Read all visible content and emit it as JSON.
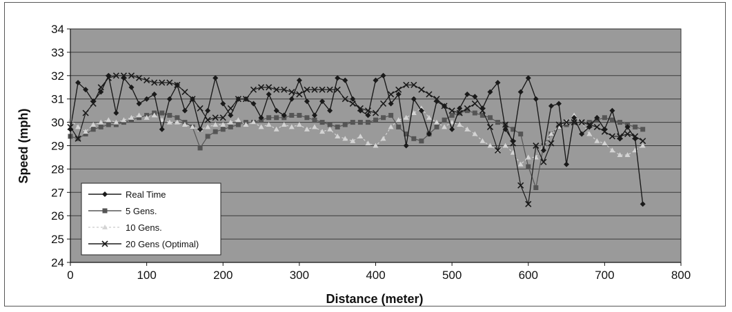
{
  "chart_data": {
    "type": "line",
    "title": "",
    "xlabel": "Distance (meter)",
    "ylabel": "Speed (mph)",
    "xlim": [
      0,
      800
    ],
    "ylim": [
      24,
      34
    ],
    "xticks": [
      0,
      100,
      200,
      300,
      400,
      500,
      600,
      700,
      800
    ],
    "yticks": [
      24,
      25,
      26,
      27,
      28,
      29,
      30,
      31,
      32,
      33,
      34
    ],
    "grid": true,
    "legend_position": "bottom-left",
    "colors": {
      "plot_background": "#9a9a9a",
      "gridline": "#222222",
      "real_time": "#1a1a1a",
      "gens5": "#555555",
      "gens10": "#d4d4d4",
      "gens20": "#1a1a1a"
    },
    "series": [
      {
        "name": "Real Time",
        "marker": "diamond",
        "x": [
          0,
          10,
          20,
          30,
          40,
          50,
          60,
          70,
          80,
          90,
          100,
          110,
          120,
          130,
          140,
          150,
          160,
          170,
          180,
          190,
          200,
          210,
          220,
          230,
          240,
          250,
          260,
          270,
          280,
          290,
          300,
          310,
          320,
          330,
          340,
          350,
          360,
          370,
          380,
          390,
          400,
          410,
          420,
          430,
          440,
          450,
          460,
          470,
          480,
          490,
          500,
          510,
          520,
          530,
          540,
          550,
          560,
          570,
          580,
          590,
          600,
          610,
          620,
          630,
          640,
          650,
          660,
          670,
          680,
          690,
          700,
          710,
          720,
          730,
          740,
          750
        ],
        "values": [
          29.7,
          31.7,
          31.4,
          30.9,
          31.3,
          32.0,
          30.4,
          31.9,
          31.5,
          30.8,
          31.0,
          31.2,
          29.7,
          31.0,
          31.6,
          30.5,
          31.0,
          29.7,
          30.5,
          31.9,
          30.8,
          30.3,
          31.0,
          31.0,
          30.8,
          30.2,
          31.2,
          30.5,
          30.3,
          31.0,
          31.8,
          30.9,
          30.3,
          30.9,
          30.5,
          31.9,
          31.8,
          31.0,
          30.5,
          30.3,
          31.8,
          32.0,
          30.8,
          31.2,
          29.0,
          31.0,
          30.5,
          29.5,
          30.9,
          30.7,
          29.7,
          30.6,
          31.2,
          31.1,
          30.6,
          31.3,
          31.7,
          29.7,
          29.2,
          31.3,
          31.9,
          31.0,
          28.8,
          30.7,
          30.8,
          28.2,
          30.2,
          29.5,
          29.8,
          30.2,
          29.7,
          30.5,
          29.3,
          29.8,
          29.3,
          26.5
        ]
      },
      {
        "name": "5 Gens.",
        "marker": "square",
        "x": [
          0,
          10,
          20,
          30,
          40,
          50,
          60,
          70,
          80,
          90,
          100,
          110,
          120,
          130,
          140,
          150,
          160,
          170,
          180,
          190,
          200,
          210,
          220,
          230,
          240,
          250,
          260,
          270,
          280,
          290,
          300,
          310,
          320,
          330,
          340,
          350,
          360,
          370,
          380,
          390,
          400,
          410,
          420,
          430,
          440,
          450,
          460,
          470,
          480,
          490,
          500,
          510,
          520,
          530,
          540,
          550,
          560,
          570,
          580,
          590,
          600,
          610,
          620,
          630,
          640,
          650,
          660,
          670,
          680,
          690,
          700,
          710,
          720,
          730,
          740,
          750
        ],
        "values": [
          29.4,
          29.3,
          29.5,
          29.7,
          29.8,
          29.9,
          29.9,
          30.0,
          30.1,
          30.2,
          30.3,
          30.4,
          30.4,
          30.3,
          30.2,
          30.0,
          29.8,
          28.9,
          29.4,
          29.6,
          29.7,
          29.8,
          29.9,
          30.0,
          30.0,
          30.1,
          30.2,
          30.2,
          30.2,
          30.3,
          30.3,
          30.2,
          30.1,
          30.0,
          29.9,
          29.8,
          29.9,
          30.0,
          30.0,
          30.0,
          30.1,
          30.2,
          30.3,
          29.8,
          29.5,
          29.3,
          29.2,
          29.5,
          29.8,
          30.1,
          30.3,
          30.4,
          30.5,
          30.4,
          30.3,
          30.2,
          30.0,
          29.9,
          29.7,
          29.5,
          28.1,
          27.2,
          29.0,
          29.5,
          29.8,
          29.9,
          30.0,
          30.0,
          30.0,
          30.1,
          30.2,
          30.1,
          30.0,
          29.9,
          29.8,
          29.7
        ]
      },
      {
        "name": "10 Gens.",
        "marker": "triangle",
        "x": [
          0,
          10,
          20,
          30,
          40,
          50,
          60,
          70,
          80,
          90,
          100,
          110,
          120,
          130,
          140,
          150,
          160,
          170,
          180,
          190,
          200,
          210,
          220,
          230,
          240,
          250,
          260,
          270,
          280,
          290,
          300,
          310,
          320,
          330,
          340,
          350,
          360,
          370,
          380,
          390,
          400,
          410,
          420,
          430,
          440,
          450,
          460,
          470,
          480,
          490,
          500,
          510,
          520,
          530,
          540,
          550,
          560,
          570,
          580,
          590,
          600,
          610,
          620,
          630,
          640,
          650,
          660,
          670,
          680,
          690,
          700,
          710,
          720,
          730,
          740,
          750
        ],
        "values": [
          30.1,
          29.8,
          29.6,
          29.9,
          30.0,
          30.1,
          30.0,
          30.1,
          30.2,
          30.3,
          30.2,
          30.3,
          30.1,
          30.0,
          30.0,
          29.9,
          29.8,
          29.7,
          29.8,
          29.9,
          29.9,
          30.0,
          30.1,
          29.9,
          30.0,
          29.8,
          29.9,
          29.7,
          29.9,
          29.8,
          29.9,
          29.7,
          29.8,
          29.6,
          29.7,
          29.4,
          29.3,
          29.2,
          29.4,
          29.1,
          29.0,
          29.3,
          29.8,
          30.1,
          30.2,
          30.4,
          30.6,
          30.2,
          30.0,
          29.8,
          30.0,
          29.9,
          29.7,
          29.5,
          29.2,
          29.0,
          28.8,
          29.0,
          28.7,
          28.2,
          28.5,
          28.5,
          29.0,
          29.5,
          29.8,
          30.0,
          30.3,
          30.0,
          29.5,
          29.2,
          29.1,
          28.8,
          28.6,
          28.6,
          28.8,
          29.0
        ]
      },
      {
        "name": "20 Gens (Optimal)",
        "marker": "x",
        "x": [
          0,
          10,
          20,
          30,
          40,
          50,
          60,
          70,
          80,
          90,
          100,
          110,
          120,
          130,
          140,
          150,
          160,
          170,
          180,
          190,
          200,
          210,
          220,
          230,
          240,
          250,
          260,
          270,
          280,
          290,
          300,
          310,
          320,
          330,
          340,
          350,
          360,
          370,
          380,
          390,
          400,
          410,
          420,
          430,
          440,
          450,
          460,
          470,
          480,
          490,
          500,
          510,
          520,
          530,
          540,
          550,
          560,
          570,
          580,
          590,
          600,
          610,
          620,
          630,
          640,
          650,
          660,
          670,
          680,
          690,
          700,
          710,
          720,
          730,
          740,
          750
        ],
        "values": [
          29.8,
          29.3,
          30.4,
          30.8,
          31.5,
          31.9,
          32.0,
          32.0,
          32.0,
          31.9,
          31.8,
          31.7,
          31.7,
          31.7,
          31.6,
          31.3,
          31.0,
          30.6,
          30.1,
          30.2,
          30.2,
          30.6,
          31.0,
          31.0,
          31.4,
          31.5,
          31.5,
          31.4,
          31.4,
          31.3,
          31.2,
          31.4,
          31.4,
          31.4,
          31.4,
          31.4,
          31.0,
          30.8,
          30.6,
          30.5,
          30.4,
          30.8,
          31.2,
          31.4,
          31.6,
          31.6,
          31.4,
          31.2,
          31.0,
          30.7,
          30.5,
          30.4,
          30.6,
          30.8,
          30.5,
          29.8,
          28.8,
          29.9,
          29.1,
          27.3,
          26.5,
          29.0,
          28.3,
          29.1,
          29.9,
          30.0,
          30.0,
          30.0,
          29.9,
          29.8,
          29.6,
          29.4,
          29.4,
          29.5,
          29.4,
          29.2
        ]
      }
    ]
  }
}
